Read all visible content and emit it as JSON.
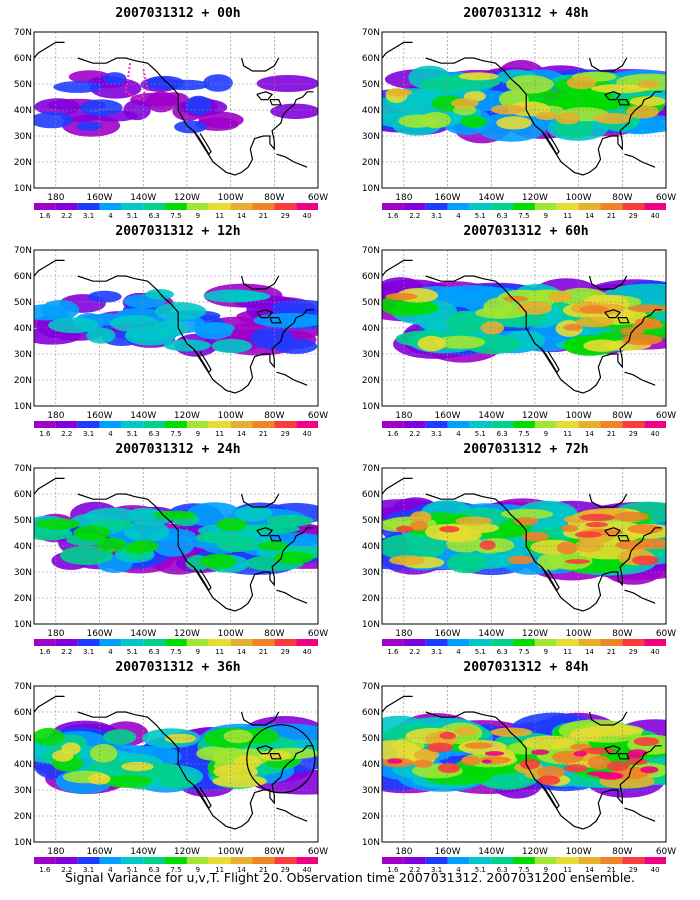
{
  "caption": "Signal Variance for u,v,T. Flight 20. Observation time 2007031312. 2007031200 ensemble.",
  "axes": {
    "lat_labels": [
      "70N",
      "60N",
      "50N",
      "40N",
      "30N",
      "20N",
      "10N"
    ],
    "lon_labels": [
      "180",
      "160W",
      "140W",
      "120W",
      "100W",
      "80W",
      "60W"
    ]
  },
  "colorbar": {
    "levels": [
      "1.6",
      "2.2",
      "3.1",
      "4",
      "5.1",
      "6.3",
      "7.5",
      "9",
      "11",
      "14",
      "21",
      "29",
      "40"
    ],
    "colors": [
      "#a000c8",
      "#8200dc",
      "#1e3cff",
      "#00a0ff",
      "#00c8c8",
      "#00d28c",
      "#00dc00",
      "#a0e632",
      "#e6dc32",
      "#e6af2d",
      "#f08228",
      "#fa3c3c",
      "#f00082"
    ]
  },
  "panels": [
    {
      "title": "2007031312 + 00h",
      "intensity": 0.15,
      "flight_track": true,
      "circle": false
    },
    {
      "title": "2007031312 + 12h",
      "intensity": 0.3,
      "flight_track": false,
      "circle": false
    },
    {
      "title": "2007031312 + 24h",
      "intensity": 0.45,
      "flight_track": false,
      "circle": false
    },
    {
      "title": "2007031312 + 36h",
      "intensity": 0.6,
      "flight_track": false,
      "circle": true
    },
    {
      "title": "2007031312 + 48h",
      "intensity": 0.65,
      "flight_track": false,
      "circle": false
    },
    {
      "title": "2007031312 + 60h",
      "intensity": 0.72,
      "flight_track": false,
      "circle": false
    },
    {
      "title": "2007031312 + 72h",
      "intensity": 0.82,
      "flight_track": false,
      "circle": false
    },
    {
      "title": "2007031312 + 84h",
      "intensity": 0.92,
      "flight_track": false,
      "circle": false
    }
  ]
}
